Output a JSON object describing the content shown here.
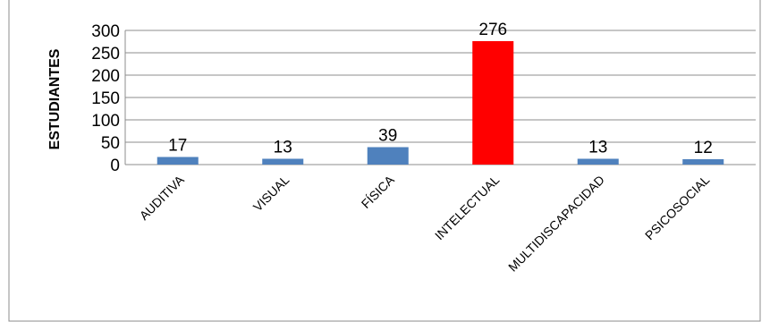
{
  "chart_data": {
    "type": "bar",
    "title": "",
    "xlabel": "",
    "ylabel": "ESTUDIANTES",
    "categories": [
      "AUDITIVA",
      "VISUAL",
      "FÍSICA",
      "INTELECTUAL",
      "MULTIDISCAPACIDAD",
      "PSICOSOCIAL"
    ],
    "values": [
      17,
      13,
      39,
      276,
      13,
      12
    ],
    "ylim": [
      0,
      300
    ],
    "yticks": [
      0,
      50,
      100,
      150,
      200,
      250,
      300
    ],
    "grid": true,
    "legend": "none",
    "colors": {
      "default_bar": "#4f81bd",
      "highlight_bar": "#ff0000"
    },
    "highlight_index": 3
  }
}
